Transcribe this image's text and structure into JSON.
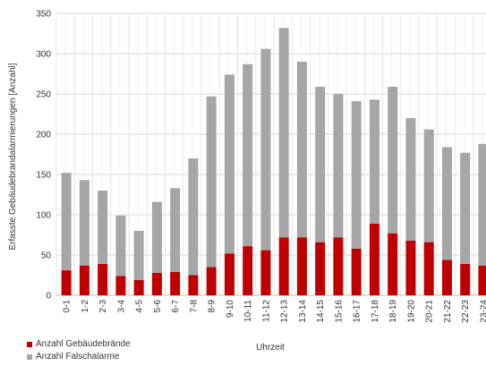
{
  "chart_data": {
    "type": "bar",
    "stacked": true,
    "ylabel": "Erfasste Gebäudebrandalarmierungen [Anzahl]",
    "xlabel": "Uhrzeit",
    "ylim": [
      0,
      350
    ],
    "yticks": [
      0,
      50,
      100,
      150,
      200,
      250,
      300,
      350
    ],
    "grid": true,
    "legend_position": "bottom-left",
    "categories": [
      "0-1",
      "1-2",
      "2-3",
      "3-4",
      "4-5",
      "5-6",
      "6-7",
      "7-8",
      "8-9",
      "9-10",
      "10-11",
      "11-12",
      "12-13",
      "13-14",
      "14-15",
      "15-16",
      "16-17",
      "17-18",
      "18-19",
      "19-20",
      "20-21",
      "21-22",
      "22-23",
      "23-24"
    ],
    "series": [
      {
        "name": "Anzahl Gebäudebrände",
        "color": "#c00000",
        "values": [
          31,
          37,
          39,
          24,
          19,
          28,
          29,
          25,
          35,
          52,
          61,
          56,
          72,
          72,
          66,
          72,
          58,
          89,
          77,
          68,
          66,
          44,
          39,
          37
        ]
      },
      {
        "name": "Anzahl Falschalarme",
        "color": "#a6a6a6",
        "values": [
          121,
          106,
          91,
          75,
          61,
          88,
          104,
          145,
          212,
          222,
          226,
          250,
          260,
          218,
          193,
          178,
          183,
          154,
          182,
          152,
          140,
          140,
          138,
          151
        ]
      }
    ]
  }
}
